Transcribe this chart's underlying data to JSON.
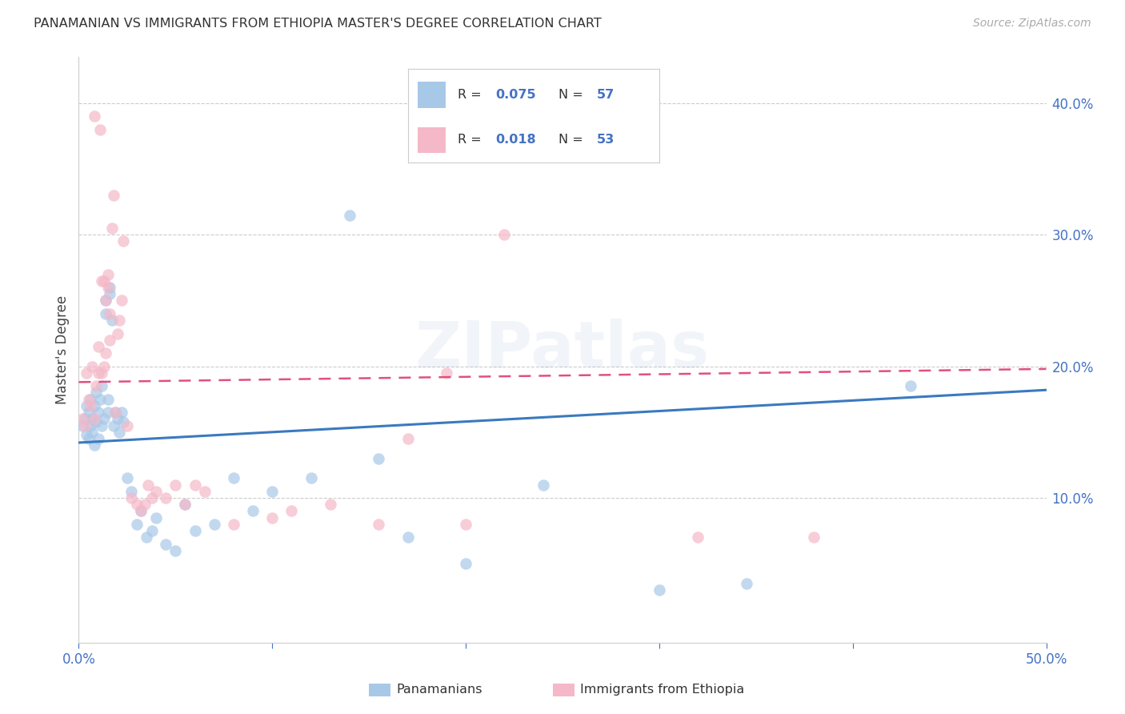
{
  "title": "PANAMANIAN VS IMMIGRANTS FROM ETHIOPIA MASTER'S DEGREE CORRELATION CHART",
  "source": "Source: ZipAtlas.com",
  "ylabel": "Master's Degree",
  "right_yticks": [
    "40.0%",
    "30.0%",
    "20.0%",
    "10.0%"
  ],
  "right_ytick_vals": [
    0.4,
    0.3,
    0.2,
    0.1
  ],
  "xlim": [
    0.0,
    0.5
  ],
  "ylim": [
    -0.01,
    0.435
  ],
  "color_blue": "#a8c8e8",
  "color_pink": "#f4b8c8",
  "line_blue": "#3a7abf",
  "line_pink": "#e05080",
  "watermark": "ZIPatlas",
  "blue_line_x": [
    0.0,
    0.5
  ],
  "blue_line_y": [
    0.142,
    0.182
  ],
  "pink_line_x": [
    0.0,
    0.5
  ],
  "pink_line_y": [
    0.188,
    0.198
  ],
  "blue_scatter_x": [
    0.002,
    0.003,
    0.004,
    0.004,
    0.005,
    0.005,
    0.006,
    0.006,
    0.007,
    0.007,
    0.008,
    0.008,
    0.009,
    0.009,
    0.01,
    0.01,
    0.011,
    0.012,
    0.012,
    0.013,
    0.014,
    0.014,
    0.015,
    0.015,
    0.016,
    0.016,
    0.017,
    0.018,
    0.019,
    0.02,
    0.021,
    0.022,
    0.023,
    0.025,
    0.027,
    0.03,
    0.032,
    0.035,
    0.038,
    0.04,
    0.045,
    0.05,
    0.055,
    0.06,
    0.07,
    0.08,
    0.09,
    0.1,
    0.12,
    0.14,
    0.155,
    0.17,
    0.2,
    0.24,
    0.3,
    0.345,
    0.43
  ],
  "blue_scatter_y": [
    0.155,
    0.16,
    0.17,
    0.148,
    0.165,
    0.145,
    0.175,
    0.155,
    0.16,
    0.15,
    0.17,
    0.14,
    0.158,
    0.18,
    0.165,
    0.145,
    0.175,
    0.155,
    0.185,
    0.16,
    0.24,
    0.25,
    0.165,
    0.175,
    0.26,
    0.255,
    0.235,
    0.155,
    0.165,
    0.16,
    0.15,
    0.165,
    0.158,
    0.115,
    0.105,
    0.08,
    0.09,
    0.07,
    0.075,
    0.085,
    0.065,
    0.06,
    0.095,
    0.075,
    0.08,
    0.115,
    0.09,
    0.105,
    0.115,
    0.315,
    0.13,
    0.07,
    0.05,
    0.11,
    0.03,
    0.035,
    0.185
  ],
  "pink_scatter_x": [
    0.002,
    0.003,
    0.004,
    0.005,
    0.006,
    0.007,
    0.008,
    0.008,
    0.009,
    0.01,
    0.01,
    0.011,
    0.012,
    0.012,
    0.013,
    0.013,
    0.014,
    0.014,
    0.015,
    0.015,
    0.016,
    0.016,
    0.017,
    0.018,
    0.019,
    0.02,
    0.021,
    0.022,
    0.023,
    0.025,
    0.027,
    0.03,
    0.032,
    0.034,
    0.036,
    0.038,
    0.04,
    0.045,
    0.05,
    0.055,
    0.06,
    0.065,
    0.08,
    0.1,
    0.11,
    0.13,
    0.155,
    0.17,
    0.19,
    0.2,
    0.22,
    0.32,
    0.38
  ],
  "pink_scatter_y": [
    0.16,
    0.155,
    0.195,
    0.175,
    0.17,
    0.2,
    0.16,
    0.39,
    0.185,
    0.195,
    0.215,
    0.38,
    0.265,
    0.195,
    0.2,
    0.265,
    0.25,
    0.21,
    0.26,
    0.27,
    0.22,
    0.24,
    0.305,
    0.33,
    0.165,
    0.225,
    0.235,
    0.25,
    0.295,
    0.155,
    0.1,
    0.095,
    0.09,
    0.095,
    0.11,
    0.1,
    0.105,
    0.1,
    0.11,
    0.095,
    0.11,
    0.105,
    0.08,
    0.085,
    0.09,
    0.095,
    0.08,
    0.145,
    0.195,
    0.08,
    0.3,
    0.07,
    0.07
  ]
}
